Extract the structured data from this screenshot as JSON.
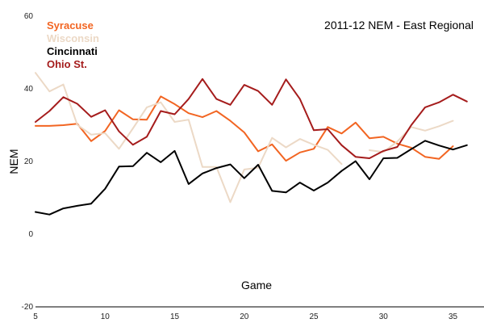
{
  "chart_data": {
    "type": "line",
    "title": "2011-12 NEM - East Regional",
    "xlabel": "Game",
    "ylabel": "NEM",
    "xlim": [
      5,
      37
    ],
    "ylim": [
      -20,
      60
    ],
    "xticks": [
      "5",
      "10",
      "15",
      "20",
      "25",
      "30",
      "35"
    ],
    "yticks": [
      "-20",
      "0",
      "20",
      "40",
      "60"
    ],
    "grid": false,
    "legend_position": "top-left",
    "x": [
      5,
      6,
      7,
      8,
      9,
      10,
      11,
      12,
      13,
      14,
      15,
      16,
      17,
      18,
      19,
      20,
      21,
      22,
      23,
      24,
      25,
      26,
      27,
      28,
      29,
      30,
      31,
      32,
      33,
      34,
      35,
      36
    ],
    "series": [
      {
        "name": "Syracuse",
        "color": "#f26522",
        "values": [
          29.8,
          29.8,
          30,
          30.4,
          25.6,
          28.4,
          34.1,
          31.6,
          31.5,
          37.9,
          35.8,
          33.3,
          32.2,
          33.9,
          31.2,
          28,
          22.8,
          24.7,
          20.2,
          22.5,
          23.5,
          29.5,
          27.7,
          30.7,
          26.4,
          26.8,
          24.9,
          23.8,
          21.3,
          20.7,
          24.2,
          null
        ]
      },
      {
        "name": "Wisconsin",
        "color": "#ecd9c6",
        "values": [
          44.4,
          39.3,
          41.2,
          30.1,
          27.4,
          27.8,
          23.5,
          29.1,
          34.9,
          36.3,
          30.9,
          31.5,
          18.5,
          18.5,
          8.8,
          17.8,
          18.3,
          26.5,
          23.9,
          26.2,
          24.6,
          23.2,
          19.3,
          null,
          23.1,
          22.6,
          25.5,
          29.5,
          28.5,
          29.7,
          31.2,
          null
        ]
      },
      {
        "name": "Cincinnati",
        "color": "#000000",
        "values": [
          6.1,
          5.4,
          7.1,
          7.8,
          8.4,
          12.5,
          18.6,
          18.7,
          22.4,
          19.8,
          22.9,
          13.8,
          16.7,
          18.2,
          19.2,
          15.4,
          19.1,
          11.9,
          11.5,
          14.2,
          12,
          14.2,
          17.4,
          20.1,
          15.1,
          20.9,
          21,
          23.4,
          25.7,
          24.4,
          23.3,
          24.5
        ]
      },
      {
        "name": "Ohio St.",
        "color": "#a51c1c",
        "values": [
          30.9,
          33.9,
          37.7,
          35.9,
          32.3,
          34.1,
          28.3,
          24.6,
          26.8,
          33.9,
          33,
          37.2,
          42.7,
          37.2,
          35.6,
          41.1,
          39.4,
          35.6,
          42.6,
          37.2,
          28.6,
          28.9,
          24.5,
          21.3,
          20.9,
          22.9,
          24,
          30,
          34.9,
          36.3,
          38.4,
          36.5
        ]
      }
    ]
  }
}
